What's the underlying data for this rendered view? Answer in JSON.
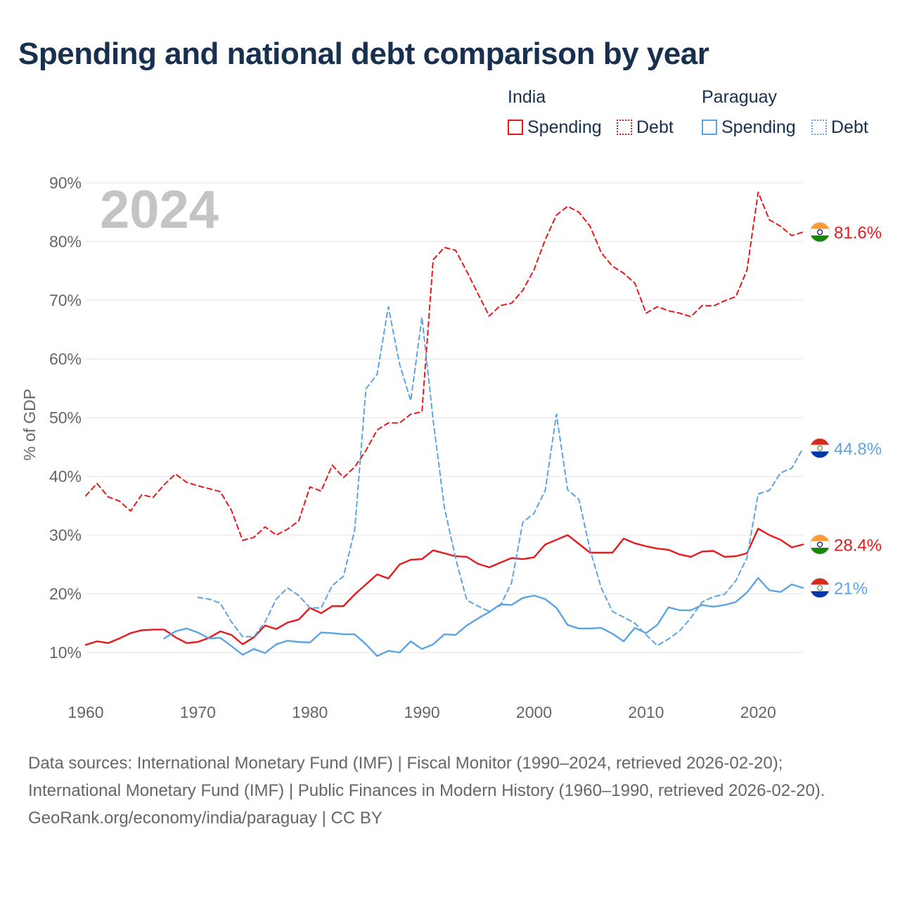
{
  "title": "Spending and national debt comparison by year",
  "legend": {
    "groups": [
      {
        "country": "India",
        "items": [
          {
            "label": "Spending",
            "style": "solid",
            "color": "#e8191d"
          },
          {
            "label": "Debt",
            "style": "dotted",
            "color": "#e8191d"
          }
        ]
      },
      {
        "country": "Paraguay",
        "items": [
          {
            "label": "Spending",
            "style": "solid",
            "color": "#5da4e3"
          },
          {
            "label": "Debt",
            "style": "dotted",
            "color": "#5da4e3"
          }
        ]
      }
    ]
  },
  "chart_data": {
    "type": "line",
    "title": "Spending and national debt comparison by year",
    "xlabel": "",
    "ylabel": "% of GDP",
    "year_watermark": "2024",
    "xlim": [
      1960,
      2024
    ],
    "ylim": [
      10,
      90
    ],
    "xticks": [
      1960,
      1970,
      1980,
      1990,
      2000,
      2010,
      2020
    ],
    "yticks": [
      10,
      20,
      30,
      40,
      50,
      60,
      70,
      80,
      90
    ],
    "ytick_suffix": "%",
    "grid": true,
    "series": [
      {
        "name": "India Debt",
        "country": "India",
        "measure": "Debt",
        "color": "#e8191d",
        "dash": "dashed",
        "end_label": "81.6%",
        "start_year": 1960,
        "values": [
          36.7,
          38.8,
          36.5,
          35.8,
          34.1,
          36.9,
          36.4,
          38.6,
          40.4,
          39.0,
          38.4,
          37.9,
          37.4,
          34.2,
          29.1,
          29.6,
          31.4,
          30.0,
          31.0,
          32.4,
          38.2,
          37.5,
          41.9,
          39.8,
          41.6,
          44.4,
          47.9,
          49.1,
          49.1,
          50.6,
          51.0,
          76.9,
          79.0,
          78.5,
          74.9,
          71.1,
          67.3,
          69.1,
          69.5,
          71.7,
          75.2,
          80.3,
          84.5,
          86.0,
          85.0,
          82.6,
          78.1,
          75.8,
          74.6,
          72.9,
          67.8,
          68.9,
          68.2,
          67.8,
          67.2,
          69.1,
          69.0,
          69.9,
          70.6,
          75.1,
          88.4,
          83.7,
          82.6,
          81.0,
          81.6
        ]
      },
      {
        "name": "India Spending",
        "country": "India",
        "measure": "Spending",
        "color": "#e8191d",
        "dash": "solid",
        "end_label": "28.4%",
        "start_year": 1960,
        "values": [
          11.3,
          11.9,
          11.6,
          12.4,
          13.3,
          13.8,
          13.9,
          13.9,
          12.6,
          11.6,
          11.8,
          12.5,
          13.6,
          13.0,
          11.4,
          12.6,
          14.6,
          14.0,
          15.1,
          15.6,
          17.6,
          16.7,
          17.9,
          17.9,
          19.9,
          21.6,
          23.3,
          22.6,
          25.0,
          25.8,
          25.9,
          27.4,
          26.9,
          26.4,
          26.3,
          25.1,
          24.5,
          25.3,
          26.1,
          25.9,
          26.2,
          28.4,
          29.2,
          30.0,
          28.5,
          27.0,
          27.0,
          27.0,
          29.4,
          28.6,
          28.1,
          27.7,
          27.5,
          26.7,
          26.3,
          27.2,
          27.3,
          26.3,
          26.4,
          26.9,
          31.1,
          30.0,
          29.2,
          27.9,
          28.4
        ]
      },
      {
        "name": "Paraguay Debt",
        "country": "Paraguay",
        "measure": "Debt",
        "color": "#5da4e3",
        "dash": "dashed",
        "end_label": "44.8%",
        "start_year": 1970,
        "values": [
          19.4,
          19.1,
          18.4,
          15.2,
          12.7,
          12.7,
          15.2,
          19.1,
          21.0,
          19.7,
          17.6,
          17.6,
          21.4,
          23.0,
          30.9,
          54.9,
          57.4,
          68.9,
          59.1,
          52.9,
          67.1,
          49.5,
          34.7,
          26.1,
          18.9,
          17.9,
          17.0,
          18.0,
          21.9,
          32.2,
          33.7,
          37.6,
          50.6,
          37.7,
          36.1,
          27.5,
          21.0,
          17.0,
          16.0,
          15.0,
          13.0,
          11.2,
          12.3,
          13.7,
          15.9,
          18.6,
          19.5,
          19.9,
          22.2,
          26.1,
          37.0,
          37.6,
          40.6,
          41.4,
          44.8
        ]
      },
      {
        "name": "Paraguay Spending",
        "country": "Paraguay",
        "measure": "Spending",
        "color": "#5da4e3",
        "dash": "solid",
        "end_label": "21%",
        "start_year": 1967,
        "values": [
          12.4,
          13.6,
          14.1,
          13.4,
          12.4,
          12.5,
          11.1,
          9.6,
          10.6,
          9.9,
          11.4,
          12.0,
          11.8,
          11.7,
          13.4,
          13.3,
          13.1,
          13.1,
          11.4,
          9.4,
          10.3,
          10.0,
          11.9,
          10.6,
          11.4,
          13.1,
          13.0,
          14.6,
          15.8,
          16.9,
          18.2,
          18.1,
          19.3,
          19.7,
          19.1,
          17.6,
          14.7,
          14.1,
          14.1,
          14.2,
          13.2,
          11.9,
          14.2,
          13.3,
          14.7,
          17.7,
          17.2,
          17.2,
          18.1,
          17.8,
          18.1,
          18.6,
          20.2,
          22.7,
          20.6,
          20.3,
          21.6,
          21.0
        ]
      }
    ]
  },
  "footer": {
    "sources": "Data sources: International Monetary Fund (IMF) | Fiscal Monitor (1990–2024, retrieved 2026-02-20); International Monetary Fund (IMF) | Public Finances in Modern History (1960–1990, retrieved 2026-02-20).",
    "attribution": "GeoRank.org/economy/india/paraguay | CC BY"
  }
}
